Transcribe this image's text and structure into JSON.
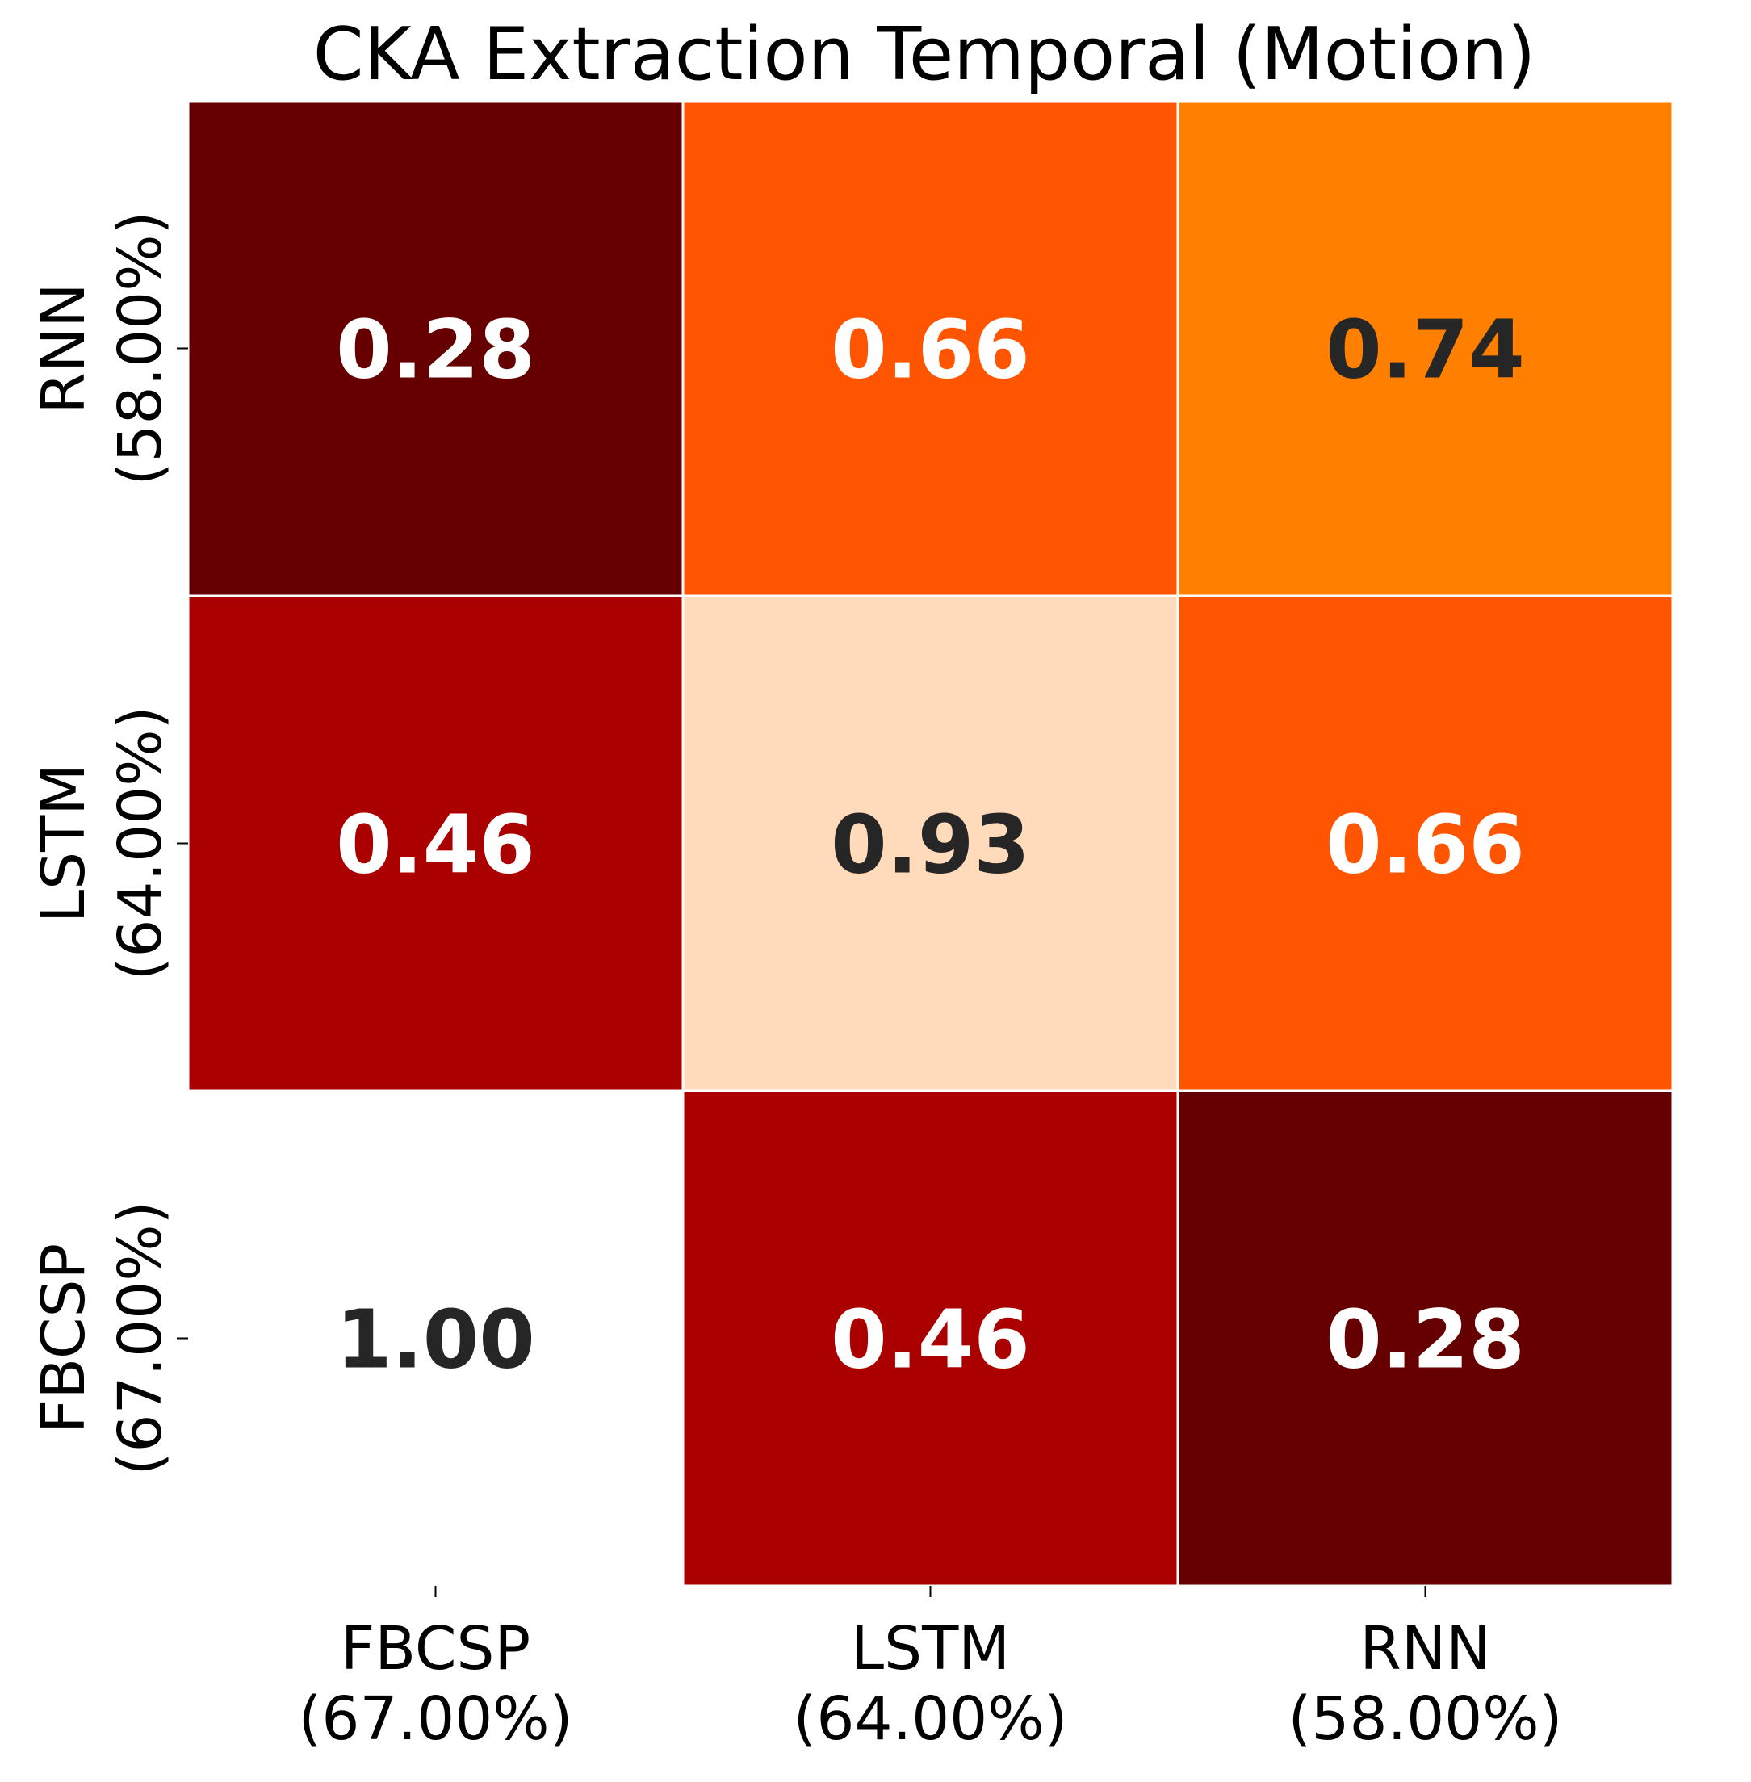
{
  "chart_data": {
    "type": "heatmap",
    "title": "CKA Extraction Temporal (Motion)",
    "xlabel": "",
    "ylabel": "",
    "x_categories": [
      {
        "name": "FBCSP",
        "accuracy": "(67.00%)"
      },
      {
        "name": "LSTM",
        "accuracy": "(64.00%)"
      },
      {
        "name": "RNN",
        "accuracy": "(58.00%)"
      }
    ],
    "y_categories": [
      {
        "name": "RNN",
        "accuracy": "(58.00%)"
      },
      {
        "name": "LSTM",
        "accuracy": "(64.00%)"
      },
      {
        "name": "FBCSP",
        "accuracy": "(67.00%)"
      }
    ],
    "values": [
      [
        0.28,
        0.66,
        0.74
      ],
      [
        0.46,
        0.93,
        0.66
      ],
      [
        1.0,
        0.46,
        0.28
      ]
    ],
    "value_labels": [
      [
        "0.28",
        "0.66",
        "0.74"
      ],
      [
        "0.46",
        "0.93",
        "0.66"
      ],
      [
        "1.00",
        "0.46",
        "0.28"
      ]
    ],
    "masked_cells": [
      [
        2,
        0
      ]
    ],
    "colormap": "gist_heat_r",
    "colorbar": false,
    "grid_line_color": "#ffffff",
    "text_colors": {
      "light": "#ffffff",
      "dark": "#262626"
    },
    "cell_colors": [
      [
        "#660000",
        "#ff5500",
        "#ff8000"
      ],
      [
        "#aa0000",
        "#ffdbbb",
        "#ff5500"
      ],
      [
        "#ffffff",
        "#aa0000",
        "#660000"
      ]
    ]
  }
}
